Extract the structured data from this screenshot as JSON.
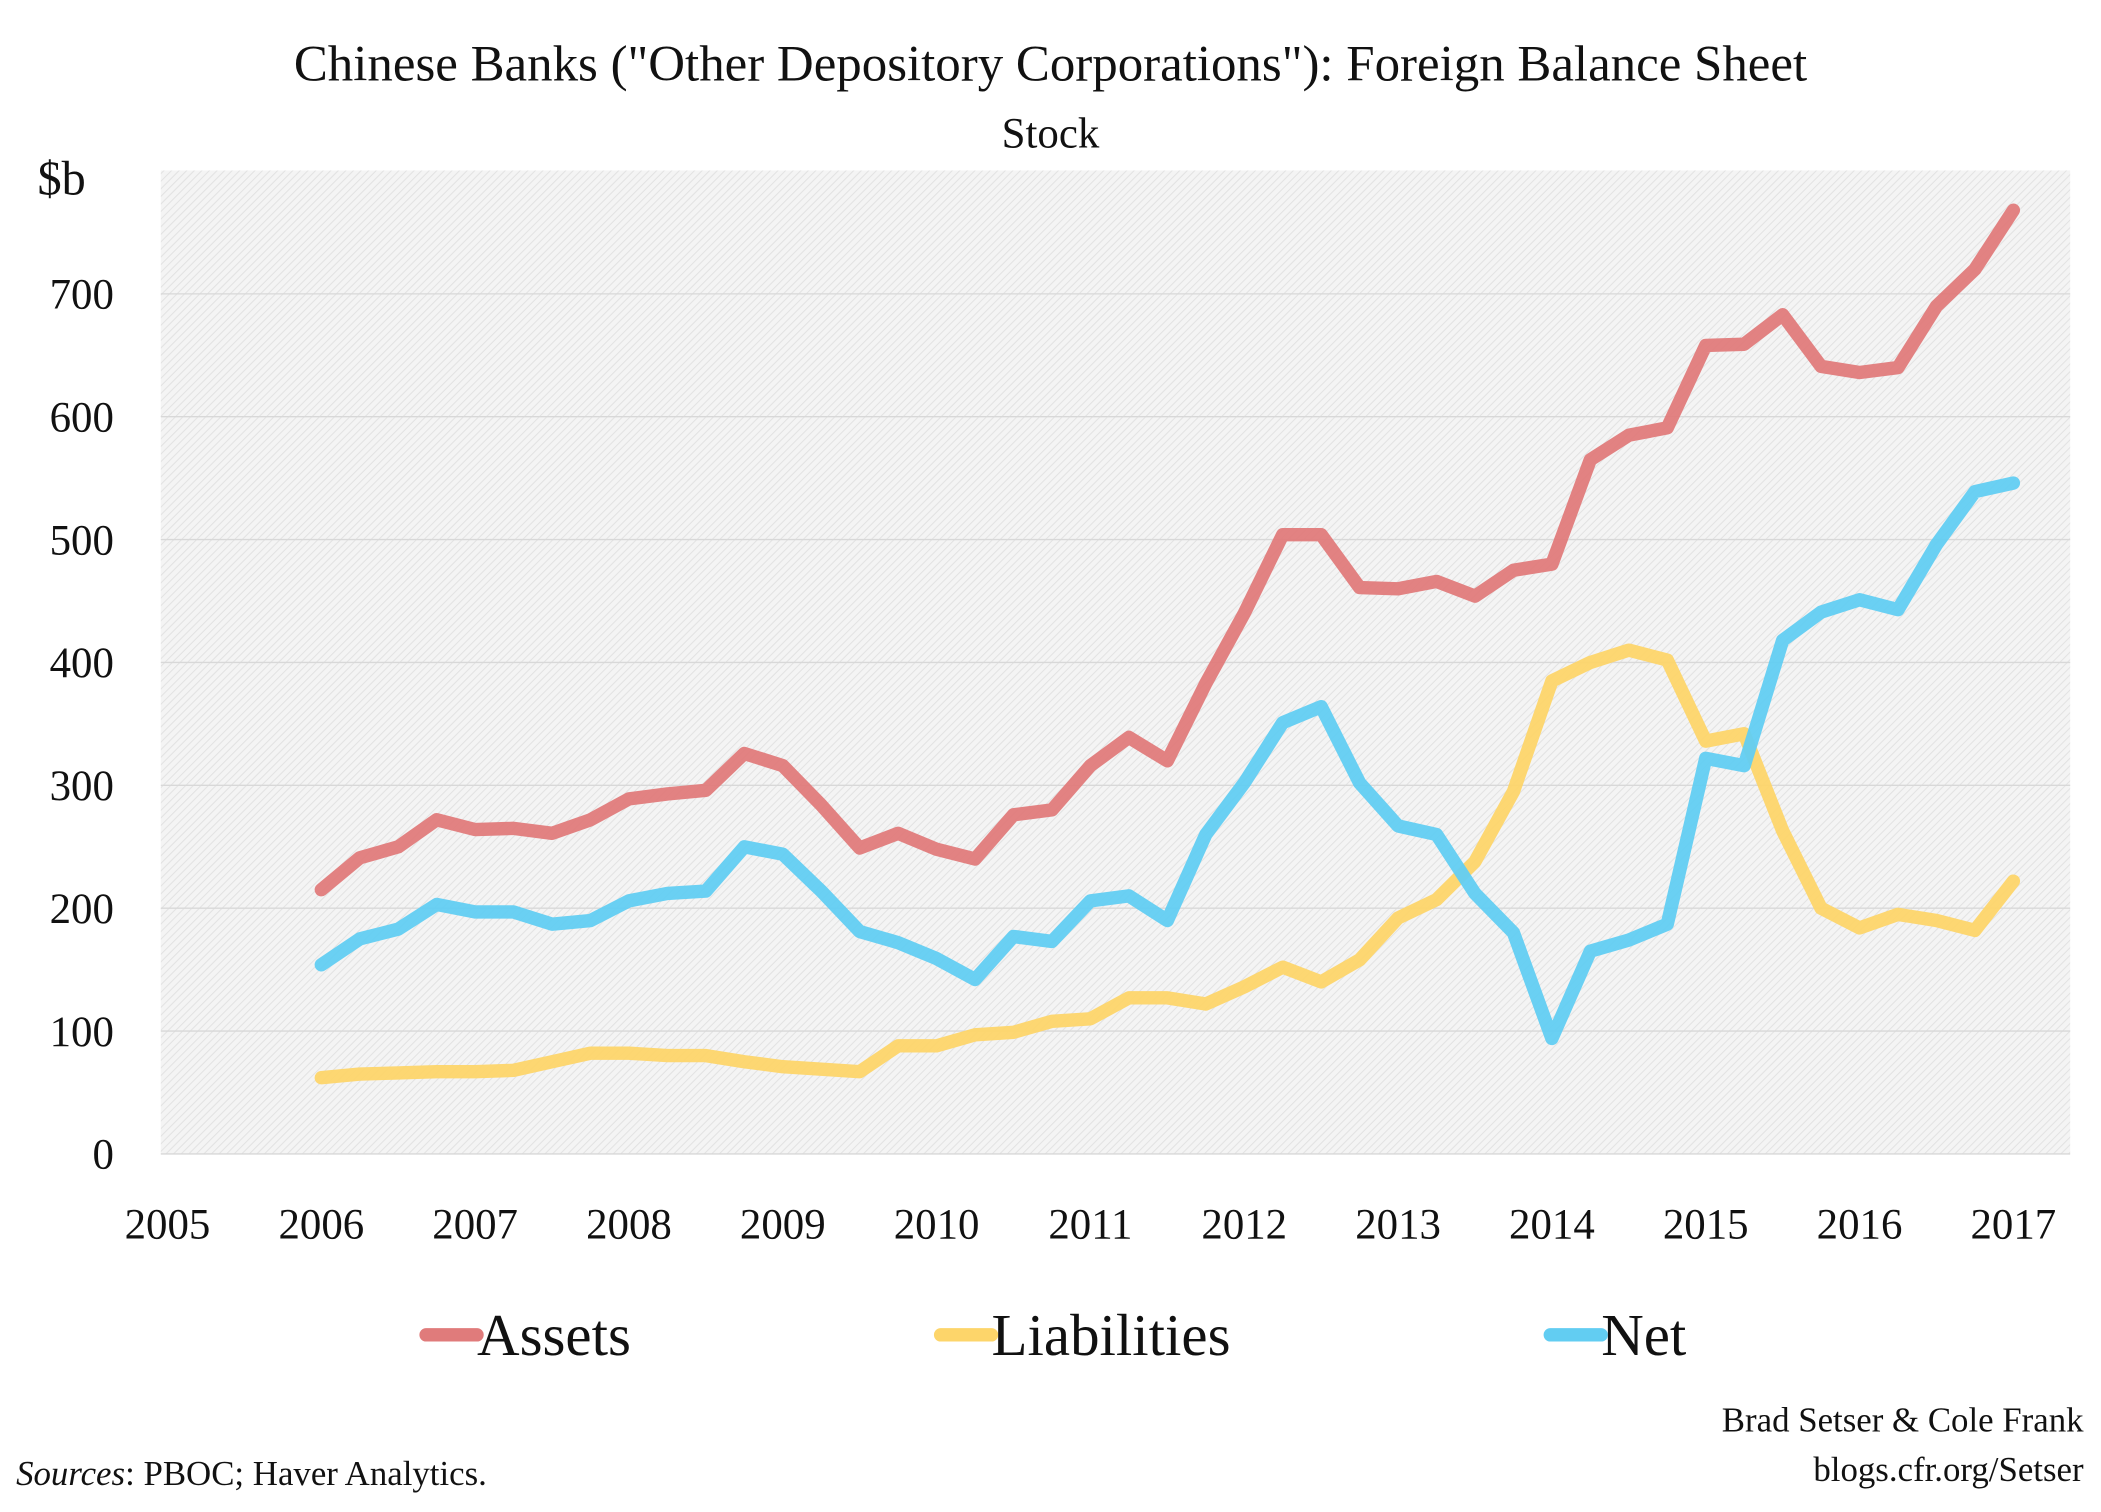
{
  "chart_data": {
    "type": "line",
    "title": "Chinese Banks (\"Other Depository Corporations\"): Foreign Balance Sheet",
    "subtitle": "Stock",
    "ylabel": "$b",
    "xlabel": "",
    "ylim": [
      0,
      800
    ],
    "xlim": [
      2005,
      2017.3
    ],
    "yticks": [
      0,
      100,
      200,
      300,
      400,
      500,
      600,
      700
    ],
    "xticks": [
      2005,
      2006,
      2007,
      2008,
      2009,
      2010,
      2011,
      2012,
      2013,
      2014,
      2015,
      2016,
      2017
    ],
    "grid": true,
    "legend_position": "bottom",
    "x_start": 2006,
    "x_step": 0.25,
    "series": [
      {
        "name": "Assets",
        "color": "#e07b7b",
        "values": [
          215,
          241,
          250,
          272,
          264,
          265,
          261,
          272,
          289,
          293,
          296,
          326,
          316,
          284,
          249,
          261,
          248,
          240,
          276,
          280,
          316,
          339,
          320,
          383,
          440,
          504,
          504,
          461,
          460,
          466,
          454,
          475,
          480,
          565,
          585,
          591,
          658,
          659,
          683,
          641,
          636,
          640,
          690,
          720,
          768
        ]
      },
      {
        "name": "Liabilities",
        "color": "#fdd56a",
        "values": [
          62,
          65,
          66,
          67,
          67,
          68,
          75,
          82,
          82,
          80,
          80,
          75,
          71,
          69,
          67,
          88,
          88,
          97,
          99,
          108,
          110,
          127,
          127,
          122,
          136,
          152,
          140,
          158,
          192,
          207,
          238,
          295,
          385,
          400,
          410,
          402,
          336,
          342,
          263,
          200,
          184,
          195,
          190,
          182,
          222
        ]
      },
      {
        "name": "Net",
        "color": "#62cdf2",
        "values": [
          154,
          175,
          183,
          203,
          197,
          197,
          187,
          190,
          206,
          212,
          214,
          250,
          244,
          214,
          181,
          172,
          159,
          142,
          177,
          173,
          206,
          210,
          190,
          260,
          302,
          351,
          364,
          302,
          267,
          260,
          212,
          180,
          94,
          165,
          174,
          187,
          322,
          316,
          418,
          441,
          451,
          443,
          496,
          539,
          546
        ]
      }
    ]
  },
  "credits": {
    "authors": "Brad Setser & Cole Frank",
    "blog": "blogs.cfr.org/Setser",
    "sources_label": "Sources",
    "sources_text": ": PBOC; Haver Analytics."
  }
}
